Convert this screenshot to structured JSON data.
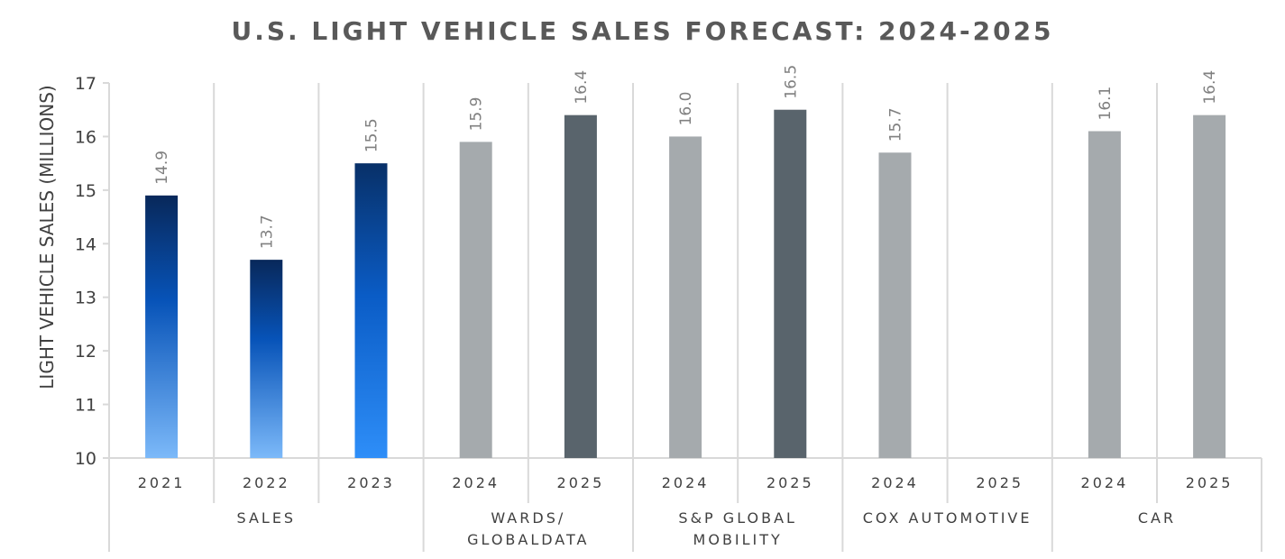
{
  "chart_data": {
    "type": "bar",
    "title": "U.S. LIGHT VEHICLE SALES FORECAST: 2024-2025",
    "ylabel": "LIGHT VEHICLE SALES (MILLIONS)",
    "xlabel": "",
    "ylim": [
      10,
      17
    ],
    "yticks": [
      "10",
      "11",
      "12",
      "13",
      "14",
      "15",
      "16",
      "17"
    ],
    "grid": "vertical group separators",
    "groups": [
      {
        "name": "SALES",
        "bars": [
          {
            "category": "2021",
            "value": 14.9,
            "label": "14.9",
            "color": "blue-gradient"
          },
          {
            "category": "2022",
            "value": 13.7,
            "label": "13.7",
            "color": "blue-gradient"
          },
          {
            "category": "2023",
            "value": 15.5,
            "label": "15.5",
            "color": "blue-gradient"
          }
        ]
      },
      {
        "name": "WARDS/\nGLOBALDATA",
        "bars": [
          {
            "category": "2024",
            "value": 15.9,
            "label": "15.9",
            "color": "#A5AAAD"
          },
          {
            "category": "2025",
            "value": 16.4,
            "label": "16.4",
            "color": "#59646C"
          }
        ]
      },
      {
        "name": "S&P GLOBAL\nMOBILITY",
        "bars": [
          {
            "category": "2024",
            "value": 16.0,
            "label": "16.0",
            "color": "#A5AAAD"
          },
          {
            "category": "2025",
            "value": 16.5,
            "label": "16.5",
            "color": "#59646C"
          }
        ]
      },
      {
        "name": "COX AUTOMOTIVE",
        "bars": [
          {
            "category": "2024",
            "value": 15.7,
            "label": "15.7",
            "color": "#A5AAAD"
          },
          {
            "category": "2025",
            "value": null,
            "label": "",
            "color": "#59646C"
          }
        ]
      },
      {
        "name": "CAR",
        "bars": [
          {
            "category": "2024",
            "value": 16.1,
            "label": "16.1",
            "color": "#A5AAAD"
          },
          {
            "category": "2025",
            "value": 16.4,
            "label": "16.4",
            "color": "#A5AAAD"
          }
        ]
      }
    ]
  },
  "colors": {
    "text": "#404040",
    "title": "#595959",
    "data_label": "#808080",
    "grid": "#D9D9D9",
    "gray_bar": "#A5AAAD",
    "dark_bar": "#59646C",
    "blue_top": "#0A2D5E",
    "blue_mid": "#0A55B5",
    "blue_bottom": "#7DB8F7"
  }
}
